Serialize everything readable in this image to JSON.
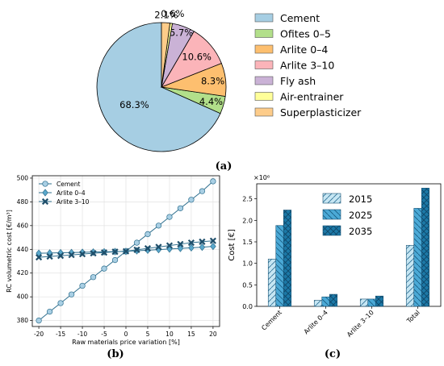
{
  "panel_labels": {
    "a": "(a)",
    "b": "(b)",
    "c": "(c)"
  },
  "chart_data": [
    {
      "type": "pie",
      "panel": "(a)",
      "categories": [
        "Cement",
        "Ofites 0–5",
        "Arlite 0–4",
        "Arlite 3–10",
        "Fly ash",
        "Air-entrainer",
        "Superplasticizer"
      ],
      "values": [
        68.3,
        4.4,
        8.3,
        10.6,
        5.7,
        0.6,
        2.1
      ],
      "labels": [
        "68.3%",
        "4.4%",
        "8.3%",
        "10.6%",
        "5.7%",
        "0.6%",
        "2.1%"
      ],
      "colors": [
        "#a6cee3",
        "#b2df8a",
        "#fdbf6f",
        "#fbb4b9",
        "#cab2d6",
        "#ffff99",
        "#fdcc8a"
      ],
      "legend": "right"
    },
    {
      "type": "line",
      "panel": "(b)",
      "xlabel": "Raw materials price variation [%]",
      "ylabel": "RC volumetric cost [€/m³]",
      "xlim": [
        -21.5,
        21.5
      ],
      "ylim": [
        375,
        502
      ],
      "xticks": [
        -20,
        -15,
        -10,
        -5,
        0,
        5,
        10,
        15,
        20
      ],
      "yticks": [
        380,
        400,
        420,
        440,
        460,
        480,
        500
      ],
      "grid": true,
      "legend": "top-left",
      "x": [
        -20,
        -17.5,
        -15,
        -12.5,
        -10,
        -7.5,
        -5,
        -2.5,
        0,
        2.5,
        5,
        7.5,
        10,
        12.5,
        15,
        17.5,
        20
      ],
      "series": [
        {
          "name": "Cement",
          "marker": "circle",
          "values": [
            380,
            387.5,
            394.7,
            402,
            409.3,
            416.6,
            423.8,
            431,
            438.3,
            445.6,
            452.8,
            460,
            467.3,
            474.6,
            481.8,
            489,
            497.3
          ]
        },
        {
          "name": "Arlite 0–4",
          "marker": "diamond",
          "values": [
            436.7,
            436.9,
            437.1,
            437.3,
            437.5,
            437.7,
            437.9,
            438.1,
            438.3,
            438.8,
            439.3,
            439.8,
            440.3,
            440.8,
            441.3,
            441.8,
            442.5
          ]
        },
        {
          "name": "Arlite 3–10",
          "marker": "x",
          "values": [
            433.3,
            434,
            434.6,
            435.3,
            436,
            436.7,
            437.3,
            438,
            438.4,
            439.6,
            440.8,
            442,
            443.2,
            444.4,
            445.6,
            446.4,
            447.2
          ]
        }
      ]
    },
    {
      "type": "bar",
      "panel": "(c)",
      "ylabel": "Cost [€]",
      "exponent_label": "×10⁶",
      "categories": [
        "Cement",
        "Arlite 0–4",
        "Arlite 3–10",
        "Total"
      ],
      "ylim": [
        0,
        2.85
      ],
      "yticks": [
        "0.0",
        "0.5",
        "1.0",
        "1.5",
        "2.0",
        "2.5"
      ],
      "legend": "top-center",
      "series": [
        {
          "name": "2015",
          "color": "#c6e6f3",
          "values": [
            1.1,
            0.14,
            0.17,
            1.42
          ]
        },
        {
          "name": "2025",
          "color": "#4ba9d6",
          "values": [
            1.88,
            0.22,
            0.17,
            2.28
          ]
        },
        {
          "name": "2035",
          "color": "#1c78a6",
          "values": [
            2.24,
            0.28,
            0.24,
            2.75
          ]
        }
      ]
    }
  ]
}
